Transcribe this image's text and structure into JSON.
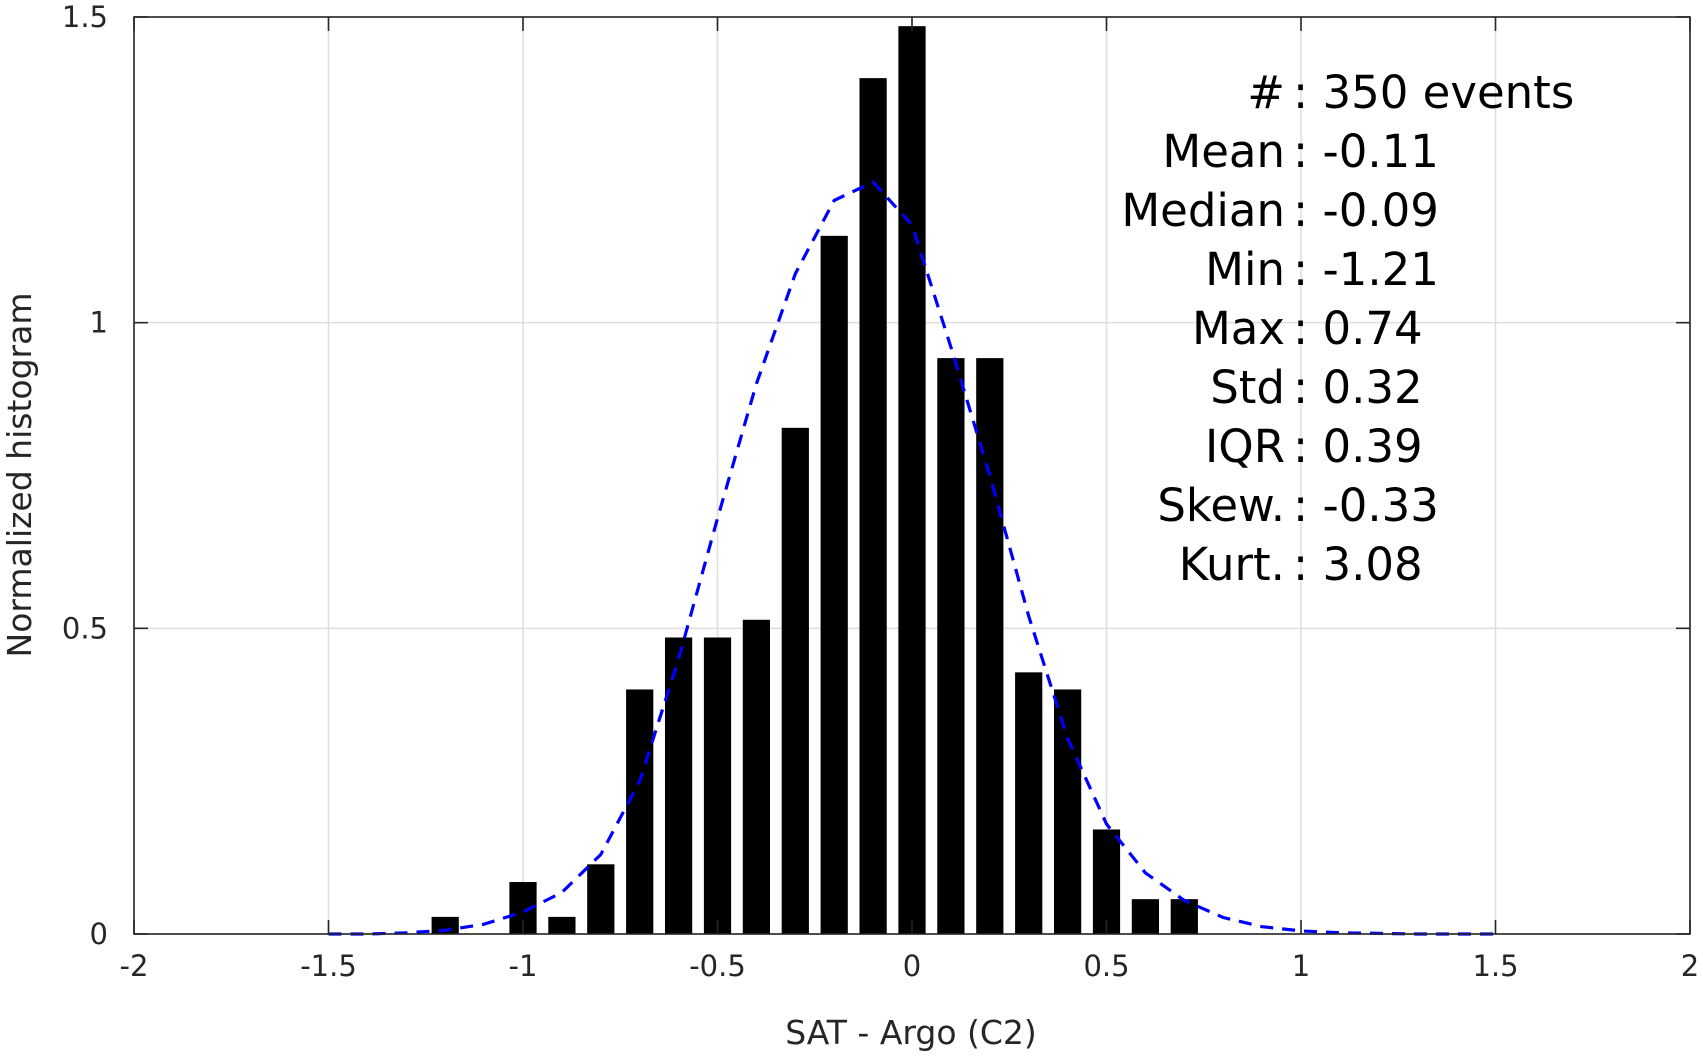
{
  "chart_data": {
    "type": "bar",
    "xlabel": "SAT - Argo (C2)",
    "ylabel": "Normalized histogram",
    "xlim": [
      -2,
      2
    ],
    "ylim": [
      0,
      1.5
    ],
    "grid": true,
    "x_ticks": [
      "-2",
      "-1.5",
      "-1",
      "-0.5",
      "0",
      "0.5",
      "1",
      "1.5",
      "2"
    ],
    "x_tick_values": [
      -2,
      -1.5,
      -1,
      -0.5,
      0,
      0.5,
      1,
      1.5,
      2
    ],
    "y_ticks": [
      "0",
      "0.5",
      "1",
      "1.5"
    ],
    "y_tick_values": [
      0,
      0.5,
      1,
      1.5
    ],
    "bar_width": 0.07,
    "bars": {
      "x": [
        -1.2,
        -1.0,
        -0.9,
        -0.8,
        -0.7,
        -0.6,
        -0.5,
        -0.4,
        -0.3,
        -0.2,
        -0.1,
        0.0,
        0.1,
        0.2,
        0.3,
        0.4,
        0.5,
        0.6,
        0.7
      ],
      "values": [
        0.028,
        0.085,
        0.028,
        0.114,
        0.4,
        0.485,
        0.485,
        0.514,
        0.828,
        1.142,
        1.4,
        1.485,
        0.942,
        0.942,
        0.428,
        0.4,
        0.171,
        0.057,
        0.057
      ],
      "color": "#000000"
    },
    "fit": {
      "style": "dashed",
      "color": "#0000ff",
      "x": [
        -1.5,
        -1.4,
        -1.3,
        -1.2,
        -1.1,
        -1.0,
        -0.9,
        -0.8,
        -0.7,
        -0.6,
        -0.5,
        -0.4,
        -0.3,
        -0.2,
        -0.1,
        0.0,
        0.1,
        0.2,
        0.3,
        0.4,
        0.5,
        0.6,
        0.7,
        0.8,
        0.9,
        1.0,
        1.1,
        1.2,
        1.3,
        1.4,
        1.5
      ],
      "y": [
        0.0,
        0.0,
        0.002,
        0.006,
        0.016,
        0.036,
        0.068,
        0.13,
        0.25,
        0.45,
        0.68,
        0.9,
        1.08,
        1.2,
        1.23,
        1.16,
        0.96,
        0.75,
        0.52,
        0.32,
        0.18,
        0.1,
        0.055,
        0.027,
        0.012,
        0.005,
        0.002,
        0.001,
        0.0,
        0.0,
        0.0
      ]
    },
    "annotations": [
      {
        "label": "#  ",
        "value": ": 350 events"
      },
      {
        "label": "Mean",
        "value": ": -0.11"
      },
      {
        "label": "Median",
        "value": ": -0.09"
      },
      {
        "label": "Min",
        "value": ": -1.21"
      },
      {
        "label": "Max",
        "value": ": 0.74"
      },
      {
        "label": "Std",
        "value": ": 0.32"
      },
      {
        "label": "IQR",
        "value": ": 0.39"
      },
      {
        "label": "Skew.",
        "value": ": -0.33"
      },
      {
        "label": "Kurt.",
        "value": ": 3.08"
      }
    ]
  }
}
